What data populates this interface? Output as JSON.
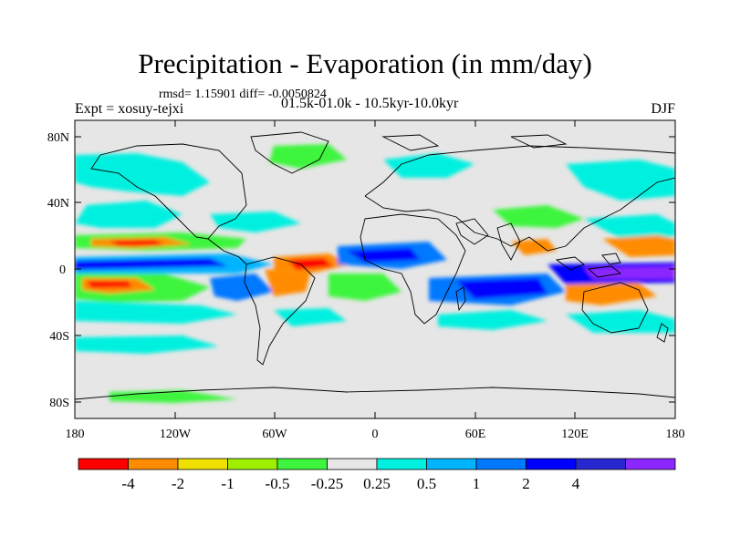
{
  "title": "Precipitation - Evaporation (in mm/day)",
  "stats": "rmsd= 1.15901 diff= -0.0050824",
  "experiment": "Expt = xosuy-tejxi",
  "period": "01.5k-01.0k - 10.5kyr-10.0kyr",
  "season": "DJF",
  "map": {
    "lat_ticks": [
      "80N",
      "40N",
      "0",
      "40S",
      "80S"
    ],
    "lon_ticks": [
      "180",
      "120W",
      "60W",
      "0",
      "60E",
      "120E",
      "180"
    ],
    "land_fill": "#e6e6e6",
    "coast_color": "#000000"
  },
  "colorbar": {
    "colors": [
      "#ff0000",
      "#ff8c00",
      "#f0e000",
      "#9ef000",
      "#3cf53c",
      "#e6e6e6",
      "#00f0e0",
      "#00b4ff",
      "#0078ff",
      "#0000ff",
      "#2828d0",
      "#8c28ff"
    ],
    "labels": [
      "-4",
      "-2",
      "-1",
      "-0.5",
      "-0.25",
      "0.25",
      "0.5",
      "1",
      "2",
      "4"
    ]
  }
}
